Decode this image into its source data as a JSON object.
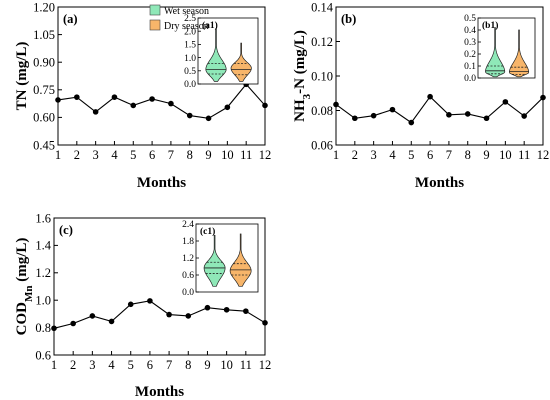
{
  "colors": {
    "wet": "#8fe8b8",
    "dry": "#f7b56a",
    "line": "#000000"
  },
  "legend": [
    {
      "label": "Wet season",
      "color": "#8fe8b8"
    },
    {
      "label": "Dry season",
      "color": "#f7b56a"
    }
  ],
  "chart_data": [
    {
      "type": "line",
      "panel_label": "(a)",
      "ylabel_parts": [
        {
          "t": "TN (mg/L)"
        }
      ],
      "xlabel": "Months",
      "x": [
        1,
        2,
        3,
        4,
        5,
        6,
        7,
        8,
        9,
        10,
        11,
        12
      ],
      "y": [
        0.695,
        0.71,
        0.63,
        0.71,
        0.665,
        0.7,
        0.675,
        0.61,
        0.595,
        0.655,
        0.78,
        0.665
      ],
      "xlim": [
        1,
        12
      ],
      "ylim": [
        0.45,
        1.2
      ],
      "yticks": [
        0.45,
        0.6,
        0.75,
        0.9,
        1.05,
        1.2
      ],
      "ytick_labels": [
        "0.45",
        "0.60",
        "0.75",
        "0.90",
        "1.05",
        "1.20"
      ],
      "inset": {
        "type": "violin",
        "label": "(a1)",
        "ylim": [
          0,
          2.5
        ],
        "yticks": [
          0,
          0.5,
          1.0,
          1.5,
          2.0,
          2.5
        ],
        "ytick_labels": [
          "0.0",
          "0.5",
          "1.0",
          "1.5",
          "2.0",
          "2.5"
        ],
        "wet": {
          "min": 0.1,
          "q1": 0.38,
          "median": 0.55,
          "q3": 0.78,
          "max": 2.1,
          "mode": 0.55
        },
        "dry": {
          "min": 0.1,
          "q1": 0.35,
          "median": 0.55,
          "q3": 0.78,
          "max": 1.55,
          "mode": 0.6
        }
      }
    },
    {
      "type": "line",
      "panel_label": "(b)",
      "ylabel_parts": [
        {
          "t": "NH"
        },
        {
          "t": "3",
          "sub": true
        },
        {
          "t": "-N (mg/L)"
        }
      ],
      "xlabel": "Months",
      "x": [
        1,
        2,
        3,
        4,
        5,
        6,
        7,
        8,
        9,
        10,
        11,
        12
      ],
      "y": [
        0.0835,
        0.0755,
        0.077,
        0.0805,
        0.073,
        0.088,
        0.0775,
        0.078,
        0.0755,
        0.085,
        0.0768,
        0.0875
      ],
      "xlim": [
        1,
        12
      ],
      "ylim": [
        0.06,
        0.14
      ],
      "yticks": [
        0.06,
        0.08,
        0.1,
        0.12,
        0.14
      ],
      "ytick_labels": [
        "0.06",
        "0.08",
        "0.10",
        "0.12",
        "0.14"
      ],
      "inset": {
        "type": "violin",
        "label": "(b1)",
        "ylim": [
          0,
          0.5
        ],
        "yticks": [
          0,
          0.1,
          0.2,
          0.3,
          0.4,
          0.5
        ],
        "ytick_labels": [
          "0.0",
          "0.1",
          "0.2",
          "0.3",
          "0.4",
          "0.5"
        ],
        "wet": {
          "min": 0.01,
          "q1": 0.035,
          "median": 0.06,
          "q3": 0.1,
          "max": 0.42,
          "mode": 0.05
        },
        "dry": {
          "min": 0.01,
          "q1": 0.03,
          "median": 0.055,
          "q3": 0.09,
          "max": 0.4,
          "mode": 0.045
        }
      }
    },
    {
      "type": "line",
      "panel_label": "(c)",
      "ylabel_parts": [
        {
          "t": "COD"
        },
        {
          "t": "Mn",
          "sub": true
        },
        {
          "t": " (mg/L)"
        }
      ],
      "xlabel": "Months",
      "x": [
        1,
        2,
        3,
        4,
        5,
        6,
        7,
        8,
        9,
        10,
        11,
        12
      ],
      "y": [
        0.795,
        0.83,
        0.885,
        0.845,
        0.97,
        0.995,
        0.895,
        0.885,
        0.945,
        0.93,
        0.92,
        0.835
      ],
      "xlim": [
        1,
        12
      ],
      "ylim": [
        0.6,
        1.6
      ],
      "yticks": [
        0.6,
        0.8,
        1.0,
        1.2,
        1.4,
        1.6
      ],
      "ytick_labels": [
        "0.6",
        "0.8",
        "1.0",
        "1.2",
        "1.4",
        "1.6"
      ],
      "inset": {
        "type": "violin",
        "label": "(c1)",
        "ylim": [
          0,
          2.4
        ],
        "yticks": [
          0,
          0.6,
          1.2,
          1.8,
          2.4
        ],
        "ytick_labels": [
          "0.0",
          "0.6",
          "1.2",
          "1.8",
          "2.4"
        ],
        "wet": {
          "min": 0.2,
          "q1": 0.65,
          "median": 0.85,
          "q3": 1.05,
          "max": 2.0,
          "mode": 0.85
        },
        "dry": {
          "min": 0.2,
          "q1": 0.6,
          "median": 0.78,
          "q3": 1.0,
          "max": 2.05,
          "mode": 0.75
        }
      }
    }
  ]
}
